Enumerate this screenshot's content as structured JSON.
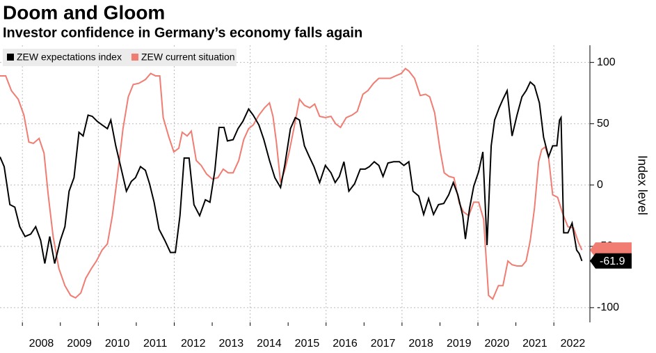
{
  "chart_data": {
    "type": "line",
    "title": "Doom and Gloom",
    "subtitle": "Investor confidence in Germany’s economy falls again",
    "y_label": "Index level",
    "ylim": [
      -112,
      114
    ],
    "yticks": [
      100,
      50,
      0,
      -50,
      -100
    ],
    "xlim": [
      2007.41,
      2022.95
    ],
    "xticks": [
      2008,
      2009,
      2010,
      2011,
      2012,
      2013,
      2014,
      2015,
      2016,
      2017,
      2018,
      2019,
      2020,
      2021,
      2022
    ],
    "grid": true,
    "legend": "top-left",
    "series": [
      {
        "name": "ZEW expectations index",
        "color": "#000000",
        "x": [
          2007.41,
          2007.52,
          2007.67,
          2007.8,
          2007.93,
          2008.07,
          2008.22,
          2008.35,
          2008.48,
          2008.59,
          2008.72,
          2008.85,
          2009.0,
          2009.12,
          2009.23,
          2009.36,
          2009.49,
          2009.6,
          2009.73,
          2009.84,
          2009.97,
          2010.1,
          2010.24,
          2010.33,
          2010.46,
          2010.59,
          2010.74,
          2010.87,
          2010.98,
          2011.11,
          2011.24,
          2011.35,
          2011.47,
          2011.6,
          2011.75,
          2011.9,
          2012.03,
          2012.15,
          2012.26,
          2012.39,
          2012.52,
          2012.67,
          2012.82,
          2012.94,
          2013.07,
          2013.18,
          2013.31,
          2013.4,
          2013.55,
          2013.68,
          2013.81,
          2013.96,
          2014.08,
          2014.23,
          2014.36,
          2014.51,
          2014.65,
          2014.8,
          2014.91,
          2015.06,
          2015.19,
          2015.3,
          2015.43,
          2015.56,
          2015.68,
          2015.83,
          2015.98,
          2016.13,
          2016.24,
          2016.35,
          2016.47,
          2016.6,
          2016.75,
          2016.9,
          2017.03,
          2017.14,
          2017.27,
          2017.39,
          2017.5,
          2017.63,
          2017.78,
          2017.93,
          2018.05,
          2018.18,
          2018.29,
          2018.44,
          2018.57,
          2018.7,
          2018.83,
          2018.96,
          2019.1,
          2019.23,
          2019.35,
          2019.47,
          2019.6,
          2019.67,
          2019.78,
          2019.89,
          2020.02,
          2020.13,
          2020.24,
          2020.35,
          2020.44,
          2020.56,
          2020.66,
          2020.77,
          2020.9,
          2021.03,
          2021.16,
          2021.27,
          2021.38,
          2021.49,
          2021.62,
          2021.73,
          2021.86,
          2021.97,
          2022.08,
          2022.15,
          2022.19,
          2022.26,
          2022.37,
          2022.48,
          2022.6,
          2022.67,
          2022.74
        ],
        "values": [
          23,
          15,
          -16,
          -18,
          -34,
          -42,
          -40,
          -34,
          -45,
          -64,
          -42,
          -64,
          -45,
          -34,
          -5,
          6,
          43,
          40,
          57,
          56,
          52,
          49,
          46,
          53,
          32,
          15,
          -5,
          3,
          6,
          15,
          12,
          1,
          -14,
          -36,
          -45,
          -55,
          -55,
          -25,
          22,
          22,
          -16,
          -25,
          -12,
          -14,
          12,
          47,
          47,
          36,
          37,
          46,
          52,
          62,
          57,
          49,
          37,
          20,
          6,
          -2,
          16,
          46,
          55,
          53,
          32,
          23,
          15,
          2,
          16,
          10,
          2,
          7,
          19,
          -5,
          1,
          13,
          13,
          15,
          19,
          16,
          7,
          18,
          19,
          19,
          16,
          19,
          -5,
          -9,
          -24,
          -11,
          -24,
          -16,
          -15,
          -8,
          2,
          -8,
          -25,
          -44,
          -19,
          -1,
          11,
          27,
          -49,
          32,
          53,
          63,
          70,
          77,
          40,
          57,
          72,
          77,
          84,
          81,
          67,
          39,
          23,
          32,
          32,
          53,
          55,
          -39,
          -39,
          -31,
          -53,
          -56,
          -61.9
        ]
      },
      {
        "name": "ZEW current situation",
        "color": "#f07c72",
        "x": [
          2007.41,
          2007.56,
          2007.71,
          2007.89,
          2008.04,
          2008.17,
          2008.29,
          2008.44,
          2008.57,
          2008.68,
          2008.81,
          2008.96,
          2009.12,
          2009.27,
          2009.4,
          2009.54,
          2009.67,
          2009.82,
          2009.95,
          2010.1,
          2010.24,
          2010.37,
          2010.5,
          2010.65,
          2010.79,
          2010.92,
          2011.07,
          2011.24,
          2011.38,
          2011.51,
          2011.62,
          2011.71,
          2011.86,
          2011.99,
          2012.12,
          2012.21,
          2012.34,
          2012.45,
          2012.58,
          2012.71,
          2012.85,
          2013.0,
          2013.15,
          2013.29,
          2013.42,
          2013.55,
          2013.7,
          2013.83,
          2013.96,
          2014.08,
          2014.23,
          2014.38,
          2014.51,
          2014.6,
          2014.69,
          2014.8,
          2014.91,
          2015.02,
          2015.15,
          2015.3,
          2015.43,
          2015.57,
          2015.7,
          2015.83,
          2015.98,
          2016.13,
          2016.25,
          2016.38,
          2016.53,
          2016.68,
          2016.82,
          2016.97,
          2017.1,
          2017.25,
          2017.39,
          2017.54,
          2017.69,
          2017.83,
          2017.98,
          2018.09,
          2018.18,
          2018.33,
          2018.48,
          2018.62,
          2018.73,
          2018.86,
          2019.0,
          2019.11,
          2019.24,
          2019.37,
          2019.51,
          2019.62,
          2019.76,
          2019.89,
          2020.02,
          2020.15,
          2020.28,
          2020.39,
          2020.54,
          2020.66,
          2020.79,
          2020.9,
          2021.03,
          2021.16,
          2021.27,
          2021.38,
          2021.49,
          2021.6,
          2021.68,
          2021.77,
          2021.86,
          2021.97,
          2022.1,
          2022.23,
          2022.37,
          2022.52,
          2022.65,
          2022.74
        ],
        "values": [
          89,
          89,
          77,
          70,
          57,
          35,
          34,
          38,
          26,
          -8,
          -42,
          -68,
          -82,
          -90,
          -92,
          -88,
          -76,
          -68,
          -62,
          -53,
          -48,
          -25,
          6,
          46,
          72,
          82,
          83,
          86,
          91,
          89,
          89,
          55,
          39,
          27,
          30,
          43,
          40,
          44,
          20,
          16,
          9,
          5,
          6,
          13,
          10,
          10,
          20,
          37,
          46,
          49,
          57,
          63,
          67,
          56,
          35,
          2,
          12,
          26,
          46,
          70,
          65,
          63,
          66,
          56,
          55,
          56,
          50,
          47,
          55,
          57,
          60,
          74,
          77,
          83,
          87,
          87,
          87,
          89,
          91,
          95,
          93,
          87,
          73,
          74,
          72,
          59,
          29,
          10,
          7,
          6,
          -15,
          -22,
          -25,
          -14,
          -14,
          -28,
          -90,
          -93,
          -82,
          -82,
          -62,
          -65,
          -66,
          -66,
          -62,
          -45,
          -19,
          19,
          29,
          31,
          23,
          -8,
          -10,
          -23,
          -34,
          -35,
          -47,
          -53
        ]
      }
    ]
  }
}
